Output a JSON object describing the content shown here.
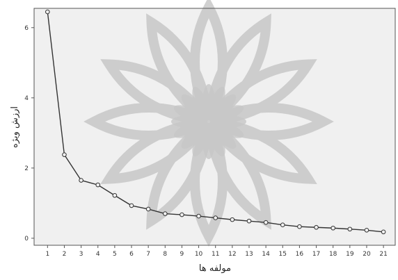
{
  "colors": {
    "plot_background": "#f0f0f0",
    "line": "#333333",
    "marker_fill": "#f0f0f0",
    "marker_stroke": "#333333",
    "frame": "#555555",
    "watermark": "#c8c8c8"
  },
  "watermark": "rosette-watermark-icon",
  "chart_data": {
    "type": "line",
    "title": "",
    "xlabel": "مولفه ها",
    "ylabel": "ارزش ویژه",
    "x": [
      1,
      2,
      3,
      4,
      5,
      6,
      7,
      8,
      9,
      10,
      11,
      12,
      13,
      14,
      15,
      16,
      17,
      18,
      19,
      20,
      21
    ],
    "xlim": [
      0.2,
      21.7
    ],
    "ylim": [
      -0.2,
      6.55
    ],
    "yticks": [
      0,
      2,
      4,
      6
    ],
    "grid": false,
    "legend": "none",
    "series": [
      {
        "values": [
          6.45,
          2.38,
          1.65,
          1.52,
          1.22,
          0.93,
          0.83,
          0.7,
          0.67,
          0.63,
          0.58,
          0.53,
          0.49,
          0.45,
          0.38,
          0.33,
          0.31,
          0.29,
          0.26,
          0.23,
          0.18
        ],
        "marker": "circle"
      }
    ]
  }
}
